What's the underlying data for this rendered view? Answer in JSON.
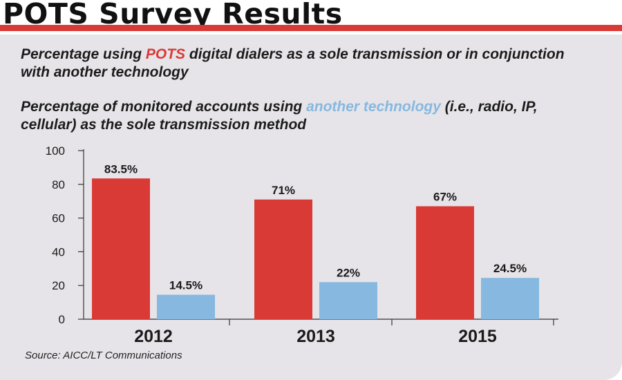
{
  "header": {
    "title": "POTS Survey Results"
  },
  "legend": {
    "series1": {
      "pre": "Percentage using ",
      "highlight": "POTS",
      "post": " digital dialers as a sole transmission or in conjunction with another technology"
    },
    "series2": {
      "pre": "Percentage of monitored accounts using ",
      "highlight": "another technology",
      "post": " (i.e., radio, IP, cellular) as the sole transmission method"
    }
  },
  "source": "Source: AICC/LT Communications",
  "colors": {
    "red": "#d93a35",
    "blue": "#86b8e0"
  },
  "chart_data": {
    "type": "bar",
    "categories": [
      "2012",
      "2013",
      "2015"
    ],
    "series": [
      {
        "values": [
          83.5,
          71,
          67
        ],
        "labels": [
          "83.5%",
          "71%",
          "67%"
        ],
        "color": "#d93a35"
      },
      {
        "values": [
          14.5,
          22,
          24.5
        ],
        "labels": [
          "14.5%",
          "22%",
          "24.5%"
        ],
        "color": "#86b8e0"
      }
    ],
    "ylim": [
      0,
      100
    ],
    "yticks": [
      0,
      20,
      40,
      60,
      80,
      100
    ],
    "grid": false
  }
}
